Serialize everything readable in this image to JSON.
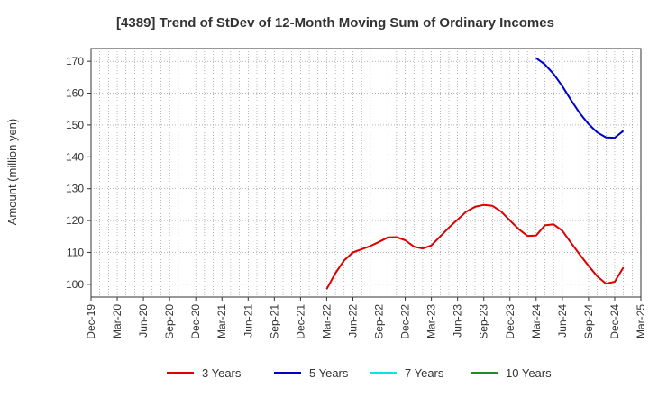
{
  "chart_data": {
    "type": "line",
    "title": "[4389]  Trend of StDev of 12-Month Moving Sum of Ordinary Incomes",
    "ylabel": "Amount (million yen)",
    "xlabel": "",
    "ylim": [
      96,
      174
    ],
    "yticks": [
      100,
      110,
      120,
      130,
      140,
      150,
      160,
      170
    ],
    "x_ticks": [
      "Dec-19",
      "Mar-20",
      "Jun-20",
      "Sep-20",
      "Dec-20",
      "Mar-21",
      "Jun-21",
      "Sep-21",
      "Dec-21",
      "Mar-22",
      "Jun-22",
      "Sep-22",
      "Dec-22",
      "Mar-23",
      "Jun-23",
      "Sep-23",
      "Dec-23",
      "Mar-24",
      "Jun-24",
      "Sep-24",
      "Dec-24",
      "Mar-25"
    ],
    "x_range": [
      "Dec-19",
      "Mar-25"
    ],
    "grid": true,
    "legend_position": "bottom",
    "series": [
      {
        "name": "3 Years",
        "color": "#dd0000",
        "points": [
          [
            "Mar-22",
            98.5
          ],
          [
            "Apr-22",
            103.5
          ],
          [
            "May-22",
            107.5
          ],
          [
            "Jun-22",
            110.0
          ],
          [
            "Jul-22",
            111.0
          ],
          [
            "Aug-22",
            112.0
          ],
          [
            "Sep-22",
            113.3
          ],
          [
            "Oct-22",
            114.7
          ],
          [
            "Nov-22",
            114.8
          ],
          [
            "Dec-22",
            113.8
          ],
          [
            "Jan-23",
            111.8
          ],
          [
            "Feb-23",
            111.2
          ],
          [
            "Mar-23",
            112.2
          ],
          [
            "Apr-23",
            115.0
          ],
          [
            "May-23",
            117.8
          ],
          [
            "Jun-23",
            120.3
          ],
          [
            "Jul-23",
            122.8
          ],
          [
            "Aug-23",
            124.3
          ],
          [
            "Sep-23",
            124.9
          ],
          [
            "Oct-23",
            124.6
          ],
          [
            "Nov-23",
            122.8
          ],
          [
            "Dec-23",
            120.0
          ],
          [
            "Jan-24",
            117.3
          ],
          [
            "Feb-24",
            115.2
          ],
          [
            "Mar-24",
            115.3
          ],
          [
            "Apr-24",
            118.5
          ],
          [
            "May-24",
            118.8
          ],
          [
            "Jun-24",
            116.8
          ],
          [
            "Jul-24",
            113.0
          ],
          [
            "Aug-24",
            109.3
          ],
          [
            "Sep-24",
            105.8
          ],
          [
            "Oct-24",
            102.5
          ],
          [
            "Nov-24",
            100.2
          ],
          [
            "Dec-24",
            100.8
          ],
          [
            "Jan-25",
            105.3
          ]
        ]
      },
      {
        "name": "5 Years",
        "color": "#0000cc",
        "points": [
          [
            "Mar-24",
            171.0
          ],
          [
            "Apr-24",
            169.0
          ],
          [
            "May-24",
            166.0
          ],
          [
            "Jun-24",
            162.2
          ],
          [
            "Jul-24",
            157.8
          ],
          [
            "Aug-24",
            153.7
          ],
          [
            "Sep-24",
            150.3
          ],
          [
            "Oct-24",
            147.7
          ],
          [
            "Nov-24",
            146.1
          ],
          [
            "Dec-24",
            146.0
          ],
          [
            "Jan-25",
            148.2
          ]
        ]
      },
      {
        "name": "7 Years",
        "color": "#00e5ee",
        "points": []
      },
      {
        "name": "10 Years",
        "color": "#228b22",
        "points": []
      }
    ]
  }
}
